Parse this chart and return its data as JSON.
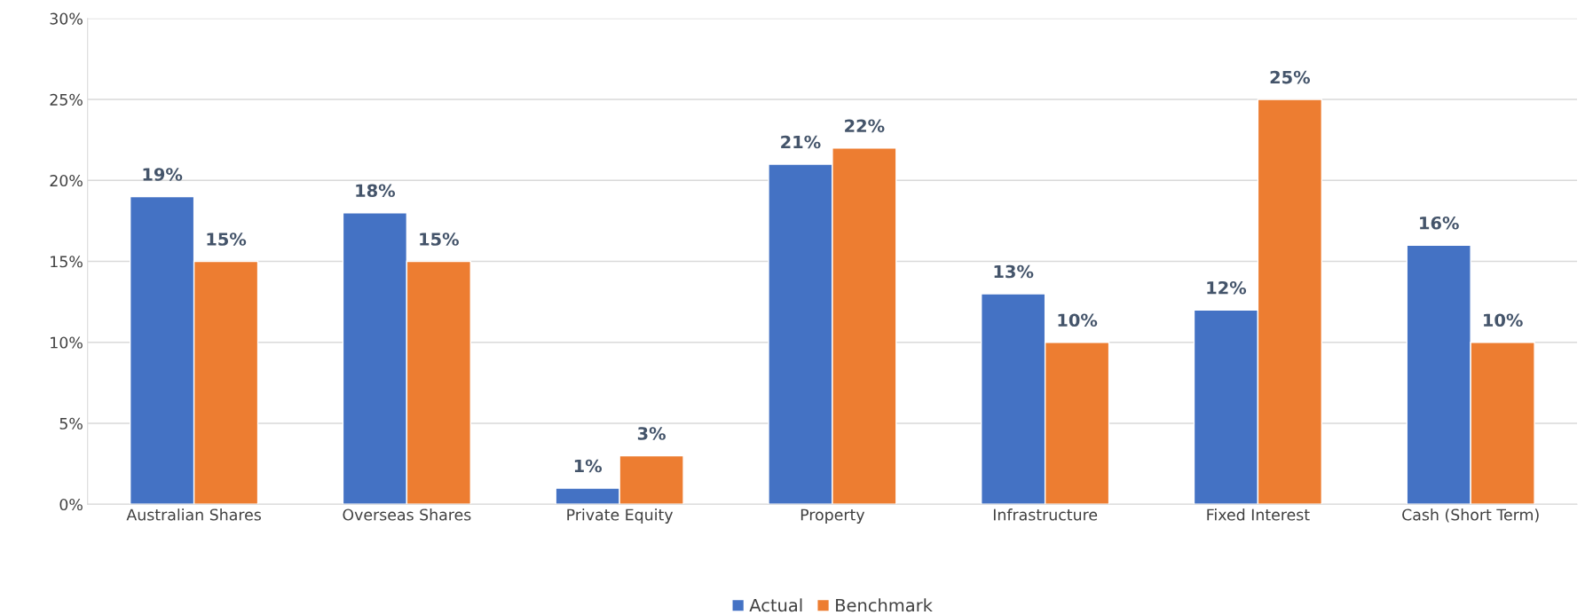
{
  "chart_data": {
    "type": "bar",
    "categories": [
      "Australian Shares",
      "Overseas Shares",
      "Private Equity",
      "Property",
      "Infrastructure",
      "Fixed Interest",
      "Cash (Short Term)"
    ],
    "series": [
      {
        "name": "Actual",
        "color": "#4472c4",
        "values": [
          19,
          18,
          1,
          21,
          13,
          12,
          16
        ],
        "value_labels": [
          "19%",
          "18%",
          "1%",
          "21%",
          "13%",
          "12%",
          "16%"
        ]
      },
      {
        "name": "Benchmark",
        "color": "#ed7d31",
        "values": [
          15,
          15,
          3,
          22,
          10,
          25,
          10
        ],
        "value_labels": [
          "15%",
          "15%",
          "3%",
          "22%",
          "10%",
          "25%",
          "10%"
        ]
      }
    ],
    "ylim": [
      0,
      30
    ],
    "yticks": [
      {
        "value": 0,
        "label": "0%"
      },
      {
        "value": 5,
        "label": "5%"
      },
      {
        "value": 10,
        "label": "10%"
      },
      {
        "value": 15,
        "label": "15%"
      },
      {
        "value": 20,
        "label": "20%"
      },
      {
        "value": 25,
        "label": "25%"
      },
      {
        "value": 30,
        "label": "30%"
      }
    ],
    "grid": "y",
    "legend": "bottom"
  }
}
